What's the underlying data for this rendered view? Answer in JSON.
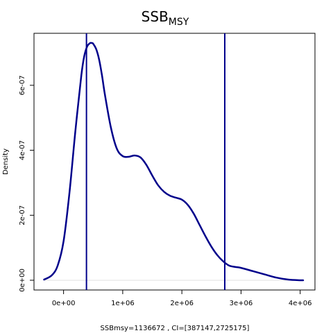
{
  "chart_data": {
    "type": "line",
    "title_main": "SSB",
    "title_subscript": "MSY",
    "xlabel": "SSBmsy=1136672 , CI=[387147,2725175]",
    "ylabel": "Density",
    "xlim": [
      -500000,
      4250000
    ],
    "ylim": [
      -3e-08,
      7.6e-07
    ],
    "x_ticks": [
      0,
      1000000,
      2000000,
      3000000,
      4000000
    ],
    "x_tick_labels": [
      "0e+00",
      "1e+06",
      "2e+06",
      "3e+06",
      "4e+06"
    ],
    "y_ticks": [
      0,
      2e-07,
      4e-07,
      6e-07
    ],
    "y_tick_labels": [
      "0e+00",
      "2e-07",
      "4e-07",
      "6e-07"
    ],
    "grid": false,
    "line_color": "#00008B",
    "series": [
      {
        "x": [
          -330000,
          -200000,
          -100000,
          0,
          100000,
          200000,
          300000,
          350000,
          400000,
          450000,
          480000,
          500000,
          550000,
          600000,
          650000,
          700000,
          800000,
          900000,
          1000000,
          1100000,
          1200000,
          1300000,
          1400000,
          1500000,
          1600000,
          1700000,
          1800000,
          1900000,
          2000000,
          2100000,
          2200000,
          2300000,
          2400000,
          2500000,
          2600000,
          2700000,
          2800000,
          2900000,
          3000000,
          3200000,
          3400000,
          3600000,
          3800000,
          4000000,
          4050000
        ],
        "y": [
          2e-09,
          1.5e-08,
          4.5e-08,
          1.2e-07,
          2.7e-07,
          4.6e-07,
          6.3e-07,
          6.9e-07,
          7.2e-07,
          7.3e-07,
          7.3e-07,
          7.28e-07,
          7.12e-07,
          6.8e-07,
          6.3e-07,
          5.7e-07,
          4.7e-07,
          4.05e-07,
          3.82e-07,
          3.8e-07,
          3.84e-07,
          3.78e-07,
          3.55e-07,
          3.22e-07,
          2.92e-07,
          2.72e-07,
          2.6e-07,
          2.54e-07,
          2.48e-07,
          2.32e-07,
          2.05e-07,
          1.7e-07,
          1.35e-07,
          1.03e-07,
          7.7e-08,
          5.8e-08,
          4.5e-08,
          4.1e-08,
          3.8e-08,
          2.8e-08,
          1.8e-08,
          8e-09,
          2e-09,
          0.0,
          0.0
        ]
      }
    ],
    "vlines": [
      387147,
      2725175
    ]
  }
}
